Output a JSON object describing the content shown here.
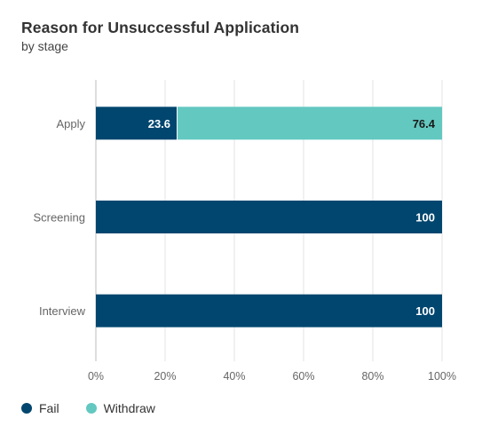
{
  "chart_data": {
    "type": "bar",
    "orientation": "horizontal",
    "stacked": true,
    "title": "Reason for Unsuccessful Application",
    "subtitle": "by stage",
    "categories": [
      "Apply",
      "Screening",
      "Interview"
    ],
    "series": [
      {
        "name": "Fail",
        "color": "#00466f",
        "values": [
          23.6,
          100,
          100
        ]
      },
      {
        "name": "Withdraw",
        "color": "#62c8c0",
        "values": [
          76.4,
          0,
          0
        ]
      }
    ],
    "x_ticks": [
      "0%",
      "20%",
      "40%",
      "60%",
      "80%",
      "100%"
    ],
    "xlim": [
      0,
      100
    ],
    "grid": true,
    "legend_position": "bottom-left"
  }
}
